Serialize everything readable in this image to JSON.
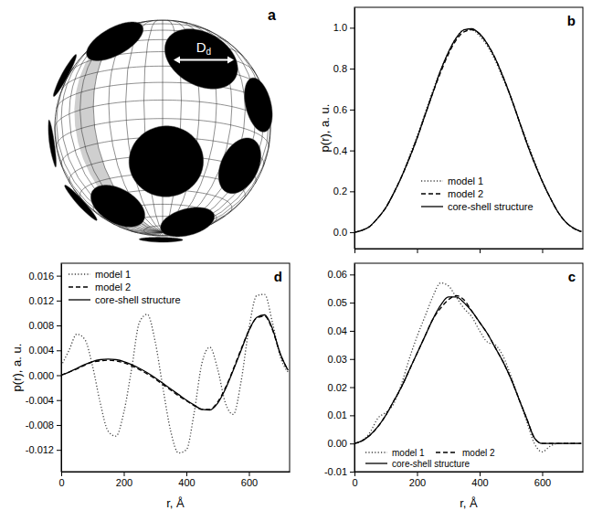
{
  "chart_data": [
    {
      "type": "line",
      "title": "b",
      "ylabel": "p(r), a. u.",
      "x": [
        0,
        25,
        50,
        75,
        100,
        125,
        150,
        175,
        200,
        225,
        250,
        275,
        300,
        325,
        350,
        375,
        400,
        425,
        450,
        475,
        500,
        525,
        550,
        575,
        600,
        625,
        650,
        675,
        700,
        725
      ],
      "xlim": [
        0,
        730
      ],
      "xticks": [
        0,
        200,
        400,
        600
      ],
      "ylim": [
        -0.08,
        1.1
      ],
      "yticks": [
        {
          "value": 0,
          "label": "0.0"
        },
        0.2,
        0.4,
        0.6,
        0.8,
        {
          "value": 1,
          "label": "1.0"
        }
      ],
      "tick_labels": "y",
      "legend": "lower center",
      "series": [
        {
          "name": "model 1",
          "color": "#404040",
          "line_style": "dotted",
          "values": [
            0,
            0.01,
            0.03,
            0.07,
            0.12,
            0.19,
            0.27,
            0.37,
            0.47,
            0.58,
            0.69,
            0.79,
            0.88,
            0.95,
            0.99,
            0.99,
            0.96,
            0.91,
            0.84,
            0.75,
            0.66,
            0.55,
            0.45,
            0.35,
            0.25,
            0.17,
            0.1,
            0.05,
            0.02,
            0.004
          ]
        },
        {
          "name": "model 2",
          "color": "#000000",
          "line_style": "dashed",
          "values": [
            0,
            0.01,
            0.03,
            0.07,
            0.12,
            0.19,
            0.27,
            0.36,
            0.46,
            0.57,
            0.68,
            0.78,
            0.87,
            0.94,
            0.98,
            0.99,
            0.97,
            0.92,
            0.85,
            0.76,
            0.66,
            0.55,
            0.44,
            0.34,
            0.25,
            0.17,
            0.1,
            0.05,
            0.02,
            0.003
          ]
        },
        {
          "name": "core-shell structure",
          "color": "#000000",
          "line_style": "solid",
          "values": [
            0,
            0.01,
            0.03,
            0.07,
            0.12,
            0.19,
            0.27,
            0.36,
            0.46,
            0.57,
            0.68,
            0.79,
            0.88,
            0.95,
            0.99,
            0.995,
            0.97,
            0.92,
            0.85,
            0.76,
            0.66,
            0.55,
            0.44,
            0.34,
            0.25,
            0.17,
            0.1,
            0.05,
            0.02,
            0.003
          ]
        }
      ]
    },
    {
      "type": "line",
      "title": "c",
      "xlabel": "r, Å",
      "x": [
        0,
        25,
        50,
        75,
        100,
        125,
        150,
        175,
        200,
        225,
        250,
        275,
        300,
        325,
        350,
        375,
        400,
        425,
        450,
        475,
        500,
        525,
        550,
        575,
        600,
        625,
        650,
        675,
        700,
        725
      ],
      "xlim": [
        0,
        730
      ],
      "xticks": [
        0,
        200,
        400,
        600
      ],
      "ylim": [
        -0.01,
        0.064
      ],
      "yticks": [
        -0.01,
        {
          "value": 0,
          "label": "0.00"
        },
        0.01,
        0.02,
        0.03,
        0.04,
        0.05,
        0.06
      ],
      "legend": "lower left",
      "series": [
        {
          "name": "model 1",
          "color": "#404040",
          "line_style": "dotted",
          "values": [
            0,
            0.001,
            0.004,
            0.009,
            0.011,
            0.014,
            0.021,
            0.03,
            0.038,
            0.045,
            0.052,
            0.057,
            0.056,
            0.052,
            0.048,
            0.045,
            0.04,
            0.036,
            0.035,
            0.031,
            0.024,
            0.016,
            0.008,
            0,
            -0.003,
            -0.001,
            0,
            0,
            0,
            0
          ]
        },
        {
          "name": "model 2",
          "color": "#000000",
          "line_style": "dashed",
          "values": [
            0,
            0.001,
            0.003,
            0.006,
            0.01,
            0.015,
            0.02,
            0.026,
            0.032,
            0.038,
            0.044,
            0.048,
            0.051,
            0.0525,
            0.051,
            0.047,
            0.043,
            0.039,
            0.034,
            0.029,
            0.023,
            0.016,
            0.009,
            0.002,
            0,
            0,
            0,
            0,
            0,
            0
          ]
        },
        {
          "name": "core-shell structure",
          "color": "#000000",
          "line_style": "solid",
          "values": [
            0,
            0.001,
            0.003,
            0.006,
            0.01,
            0.015,
            0.02,
            0.026,
            0.032,
            0.038,
            0.044,
            0.049,
            0.052,
            0.052,
            0.05,
            0.047,
            0.043,
            0.039,
            0.034,
            0.029,
            0.023,
            0.016,
            0.009,
            0.002,
            0,
            0,
            0,
            0,
            0,
            0
          ]
        }
      ]
    },
    {
      "type": "line",
      "title": "d",
      "xlabel": "r, Å",
      "ylabel": "p(r), a. u.",
      "x": [
        0,
        25,
        50,
        75,
        100,
        125,
        150,
        175,
        200,
        225,
        250,
        275,
        300,
        325,
        350,
        375,
        400,
        425,
        450,
        475,
        500,
        525,
        550,
        575,
        600,
        625,
        650,
        675,
        700,
        725
      ],
      "xlim": [
        0,
        730
      ],
      "xticks": [
        0,
        200,
        400,
        600
      ],
      "ylim": [
        -0.0155,
        0.018
      ],
      "yticks": [
        -0.012,
        -0.008,
        -0.004,
        {
          "value": 0,
          "label": "0.000"
        },
        0.004,
        0.008,
        0.012,
        0.016
      ],
      "legend": "upper left",
      "series": [
        {
          "name": "model 1",
          "color": "#404040",
          "line_style": "dotted",
          "values": [
            0.0015,
            0.004,
            0.0066,
            0.0058,
            0.0015,
            -0.0045,
            -0.009,
            -0.0098,
            -0.006,
            0.001,
            0.0085,
            0.0098,
            0.0055,
            -0.002,
            -0.009,
            -0.0125,
            -0.012,
            -0.006,
            0.002,
            0.0045,
            0.001,
            -0.0045,
            -0.0063,
            -0.001,
            0.0075,
            0.0128,
            0.013,
            0.0085,
            0.003,
            0.0005
          ]
        },
        {
          "name": "model 2",
          "color": "#000000",
          "line_style": "dashed",
          "values": [
            0,
            0.0005,
            0.001,
            0.0016,
            0.0021,
            0.0023,
            0.0024,
            0.0023,
            0.002,
            0.0015,
            0.0009,
            0.0002,
            -0.0006,
            -0.0015,
            -0.0024,
            -0.0033,
            -0.0041,
            -0.0049,
            -0.0055,
            -0.0055,
            -0.0043,
            -0.002,
            0.001,
            0.0042,
            0.0072,
            0.0092,
            0.0095,
            0.0073,
            0.0034,
            0.0008
          ]
        },
        {
          "name": "core-shell structure",
          "color": "#000000",
          "line_style": "solid",
          "values": [
            0,
            0.0005,
            0.0011,
            0.0017,
            0.0022,
            0.0025,
            0.0026,
            0.0025,
            0.0022,
            0.0017,
            0.0011,
            0.0004,
            -0.0004,
            -0.0013,
            -0.0022,
            -0.0031,
            -0.004,
            -0.0048,
            -0.0055,
            -0.0056,
            -0.0045,
            -0.0022,
            0.0008,
            0.004,
            0.0072,
            0.0093,
            0.0097,
            0.0075,
            0.0035,
            0.0008
          ]
        }
      ]
    }
  ],
  "diagram": {
    "panel": "a",
    "label": "D",
    "label_subscript": "d"
  }
}
